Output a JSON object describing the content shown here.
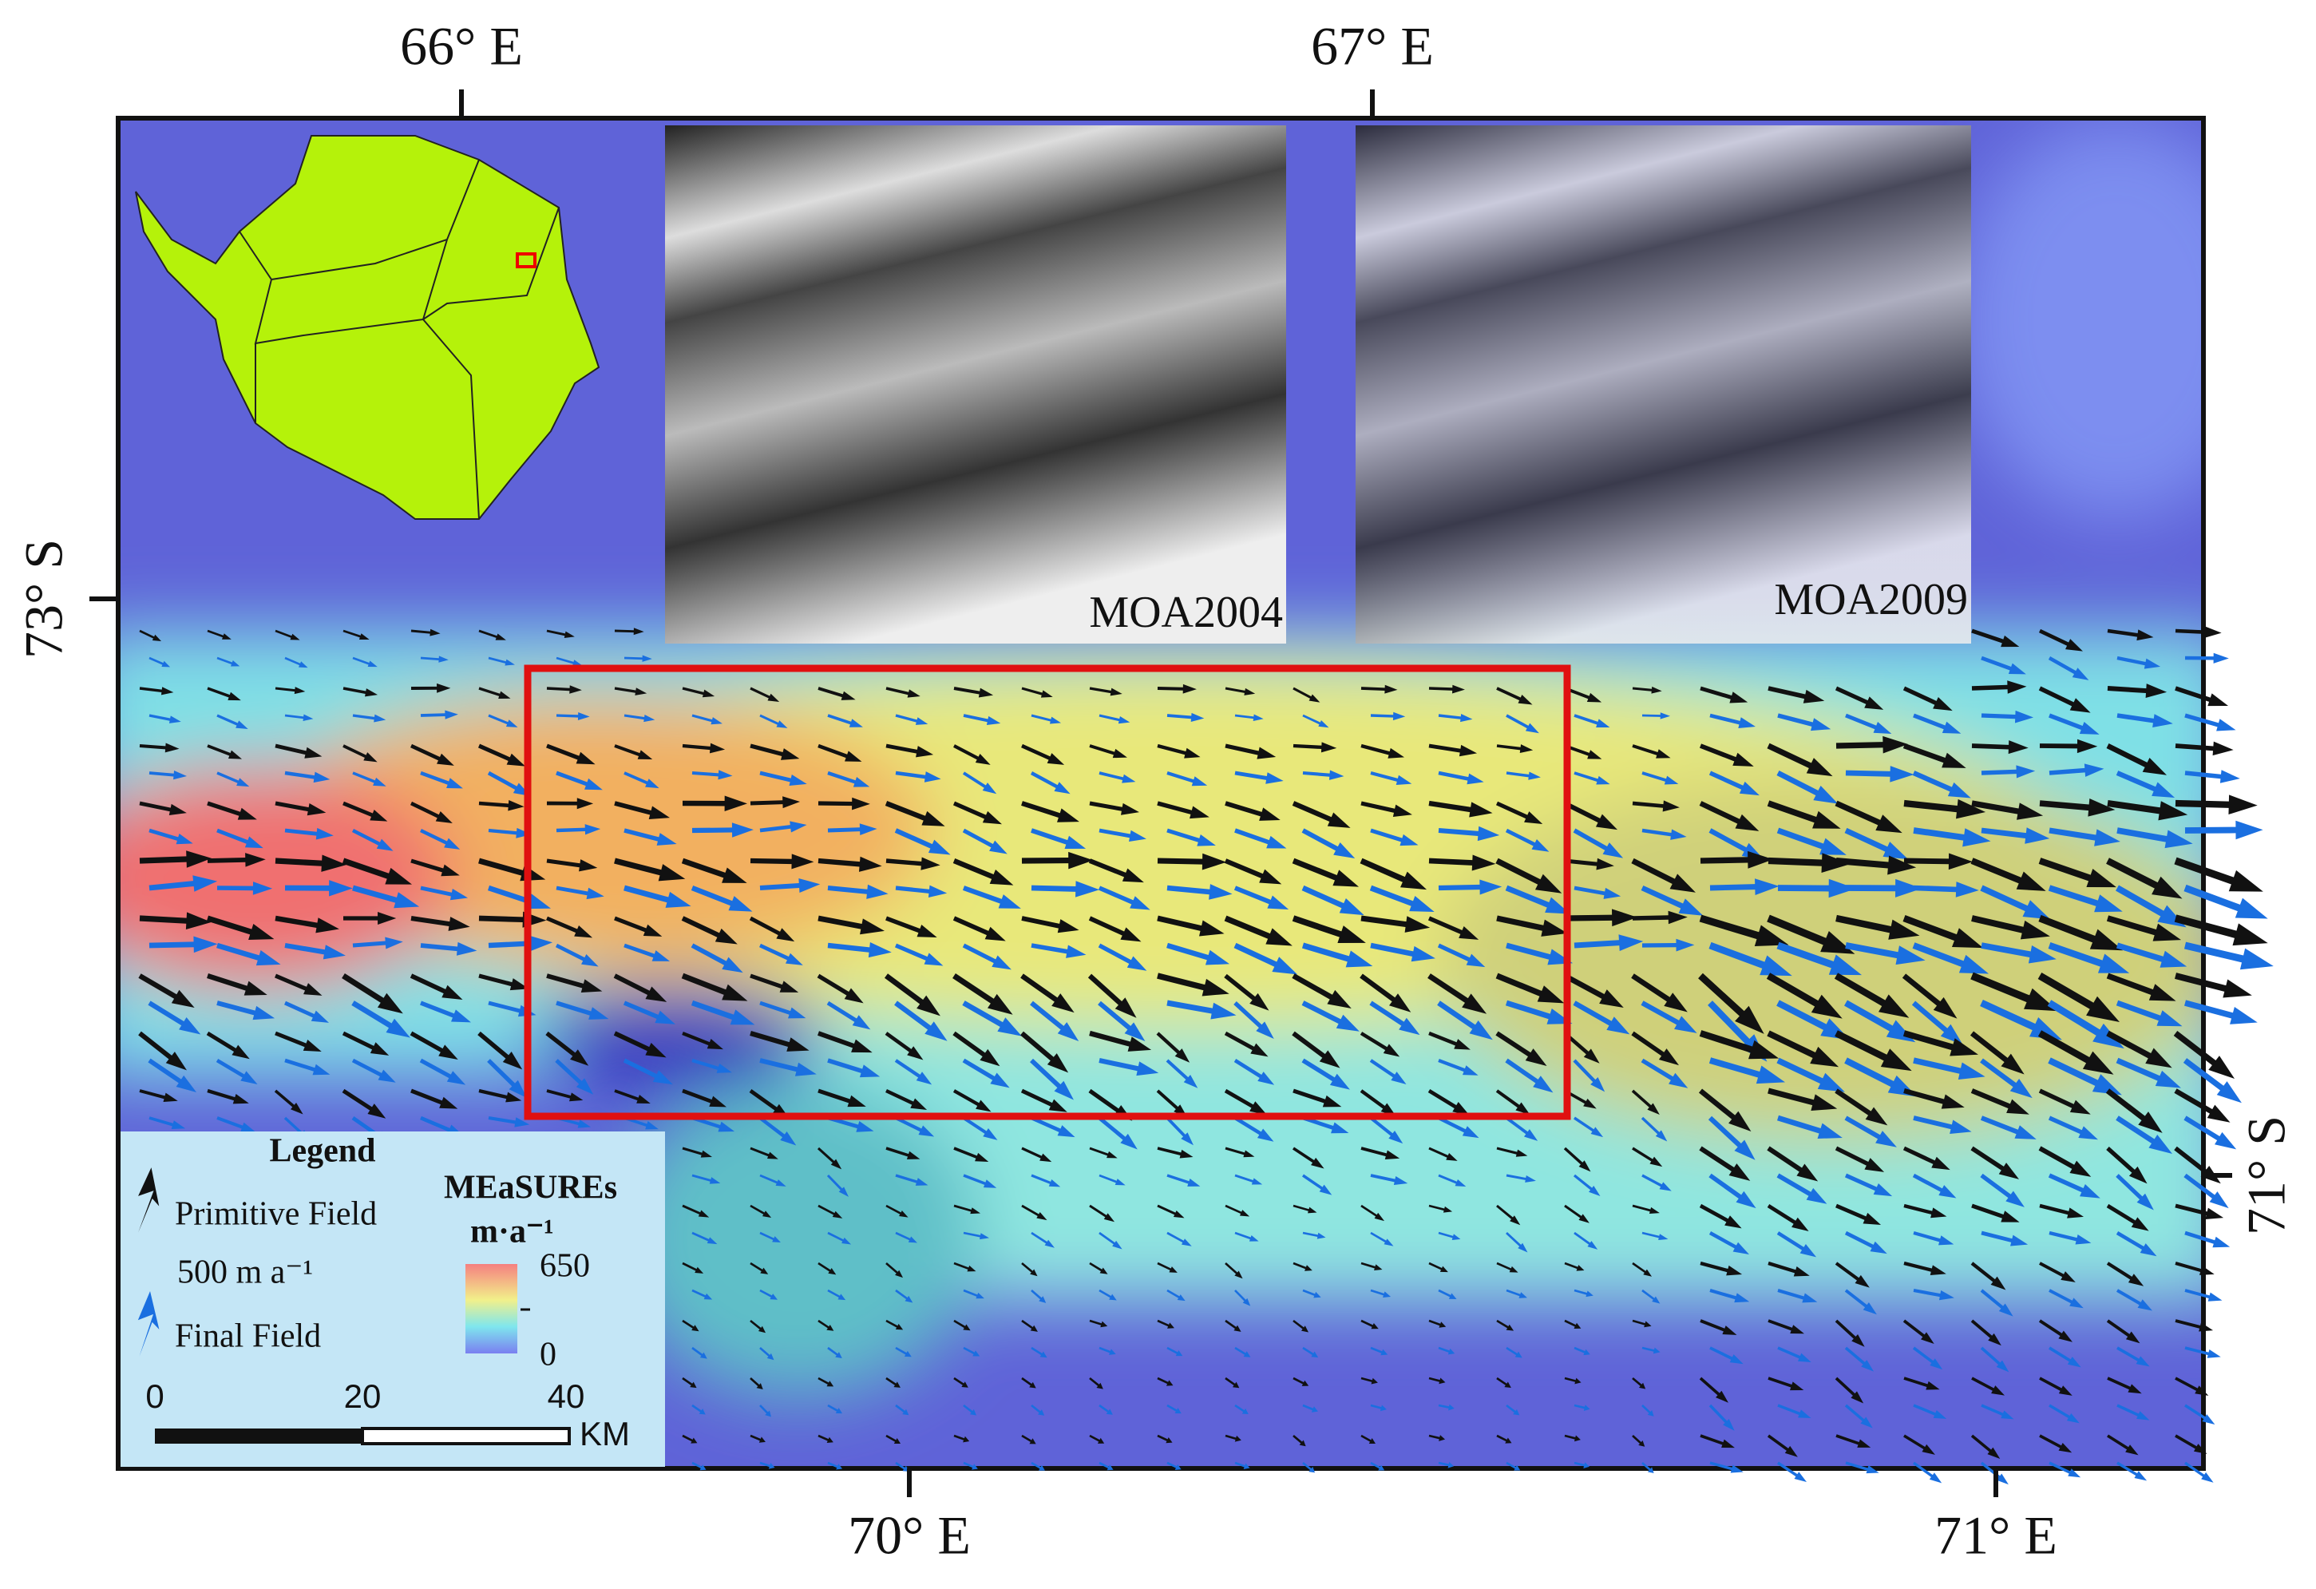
{
  "axes": {
    "top": [
      "66° E",
      "67° E"
    ],
    "left": [
      "73° S"
    ],
    "bottom": [
      "70° E",
      "71° E"
    ],
    "right": [
      "71° S"
    ]
  },
  "insets": {
    "moa_left": "MOA2004",
    "moa_right": "MOA2009"
  },
  "legend": {
    "title": "Legend",
    "primitive": "Primitive Field",
    "reference": "500 m a⁻¹",
    "final": "Final Field",
    "colorbar_title": "MEaSUREs",
    "colorbar_unit": "m·a⁻¹",
    "colorbar_max": "650",
    "colorbar_min": "0",
    "scale_ticks": [
      "0",
      "20",
      "40"
    ],
    "scale_unit": "KM"
  }
}
